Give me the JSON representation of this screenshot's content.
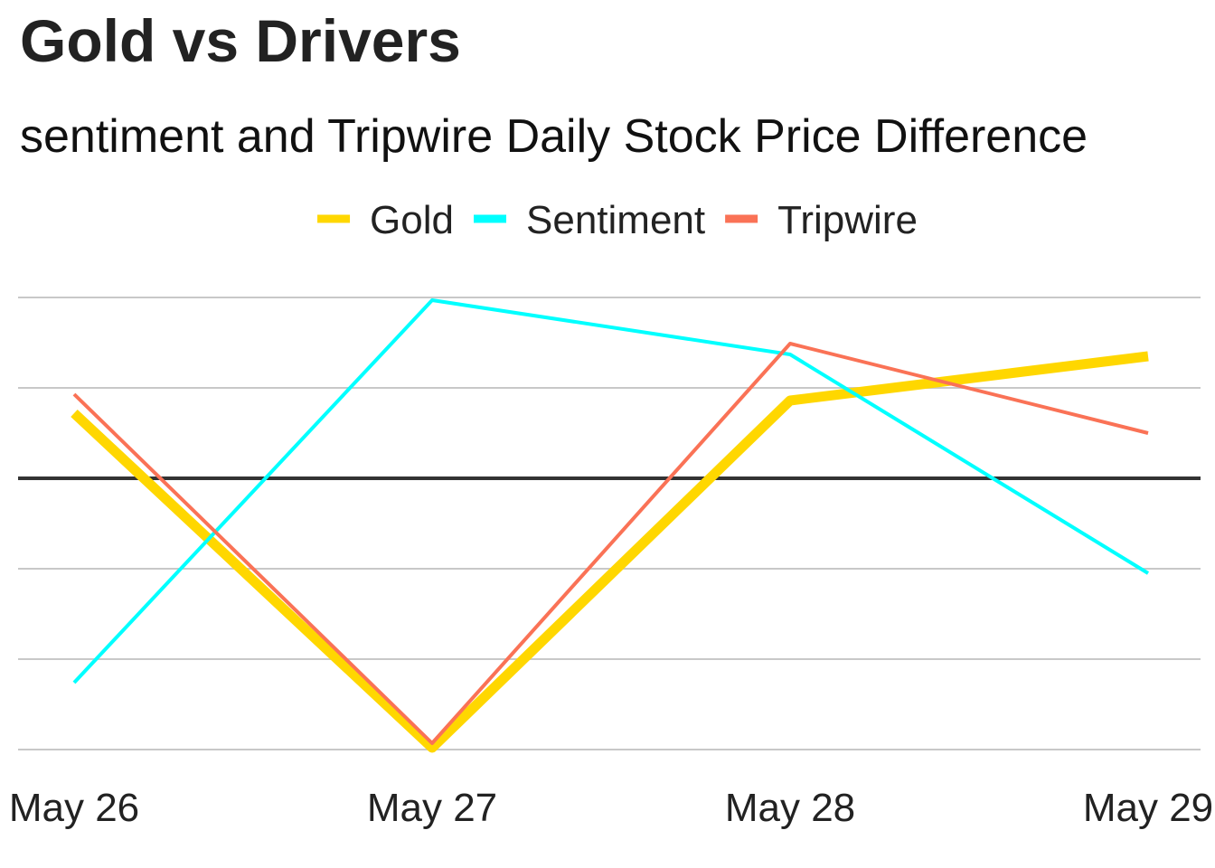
{
  "chart_data": {
    "type": "line",
    "title": "Gold vs Drivers",
    "subtitle": "sentiment and Tripwire Daily Stock Price Difference",
    "xlabel": "",
    "ylabel": "",
    "categories": [
      "May 26",
      "May 27",
      "May 28",
      "May 29"
    ],
    "ylim": [
      -3,
      2
    ],
    "y_gridlines": [
      -3,
      -2,
      -1,
      0,
      1,
      2
    ],
    "y_tick_labels_shown": false,
    "zero_line": true,
    "grid": true,
    "legend_position": "top-center",
    "series": [
      {
        "name": "Gold",
        "values": [
          0.72,
          -2.98,
          0.86,
          1.35
        ],
        "color": "#FFD700",
        "weight": "thick"
      },
      {
        "name": "Sentiment",
        "values": [
          -2.26,
          1.97,
          1.37,
          -1.05
        ],
        "color": "#00FFFF",
        "weight": "thin"
      },
      {
        "name": "Tripwire",
        "values": [
          0.93,
          -2.93,
          1.49,
          0.5
        ],
        "color": "#FA7256",
        "weight": "thin"
      }
    ],
    "zero_line_color": "#333333",
    "grid_color": "#c8c8c8"
  }
}
